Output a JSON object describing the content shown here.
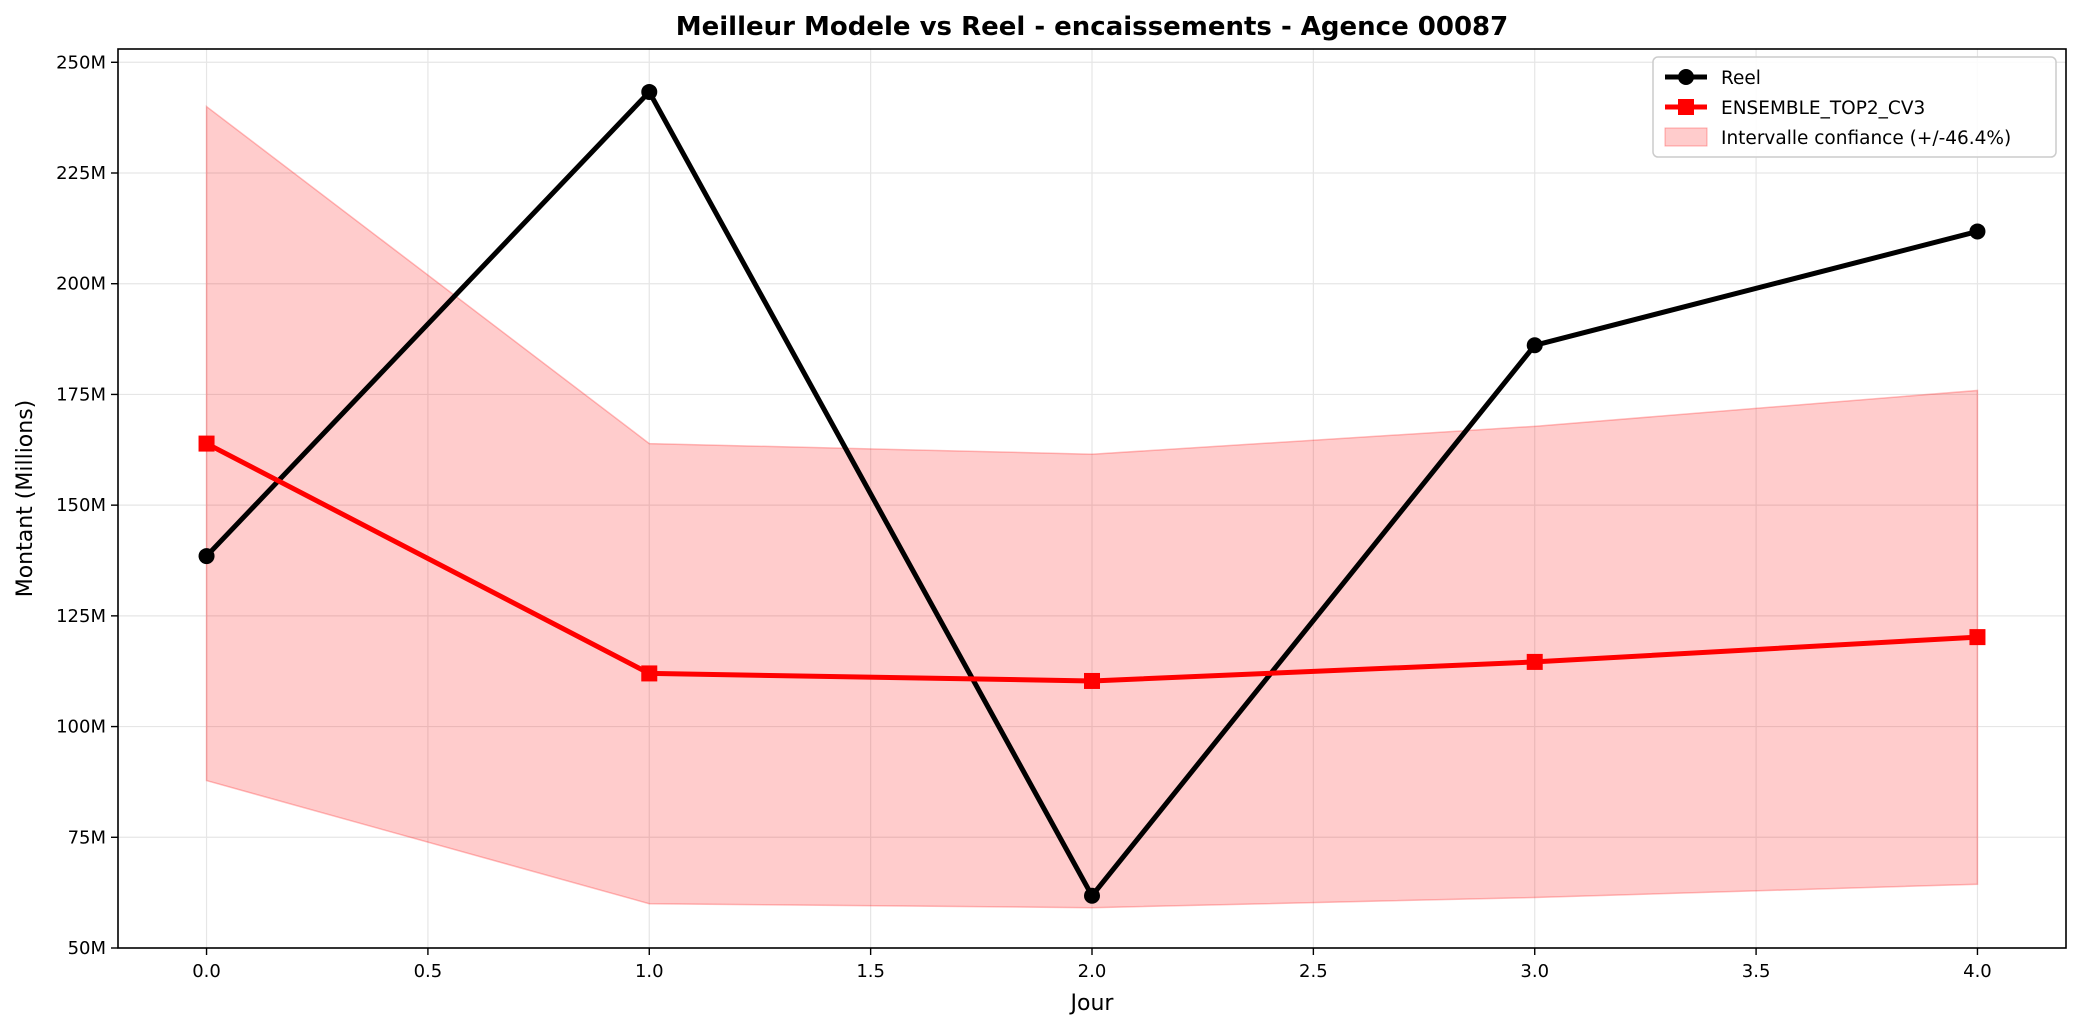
{
  "chart_data": {
    "type": "line",
    "title": "Meilleur Modele vs Reel - encaissements - Agence 00087",
    "xlabel": "Jour",
    "ylabel": "Montant (Millions)",
    "xlim": [
      -0.2,
      4.2
    ],
    "ylim": [
      50,
      253
    ],
    "x_ticks": [
      0.0,
      0.5,
      1.0,
      1.5,
      2.0,
      2.5,
      3.0,
      3.5,
      4.0
    ],
    "x_tick_labels": [
      "0.0",
      "0.5",
      "1.0",
      "1.5",
      "2.0",
      "2.5",
      "3.0",
      "3.5",
      "4.0"
    ],
    "y_ticks": [
      50,
      75,
      100,
      125,
      150,
      175,
      200,
      225,
      250
    ],
    "y_tick_labels": [
      "50M",
      "75M",
      "100M",
      "125M",
      "150M",
      "175M",
      "200M",
      "225M",
      "250M"
    ],
    "grid": true,
    "legend_position": "top-right",
    "x": [
      0,
      1,
      2,
      3,
      4
    ],
    "series": [
      {
        "name": "Reel",
        "values": [
          138.5,
          243.3,
          61.8,
          186.1,
          211.8
        ],
        "color": "#000000",
        "marker": "circle"
      },
      {
        "name": "ENSEMBLE_TOP2_CV3",
        "values": [
          163.9,
          112.0,
          110.3,
          114.6,
          120.2
        ],
        "color": "#ff0000",
        "marker": "square"
      }
    ],
    "band": {
      "name": "Intervalle confiance (+/-46.4%)",
      "lower": [
        87.8,
        60.0,
        59.1,
        61.4,
        64.4
      ],
      "upper": [
        240.0,
        163.9,
        161.5,
        167.8,
        175.9
      ],
      "color": "#ff0000",
      "opacity": 0.2
    }
  }
}
